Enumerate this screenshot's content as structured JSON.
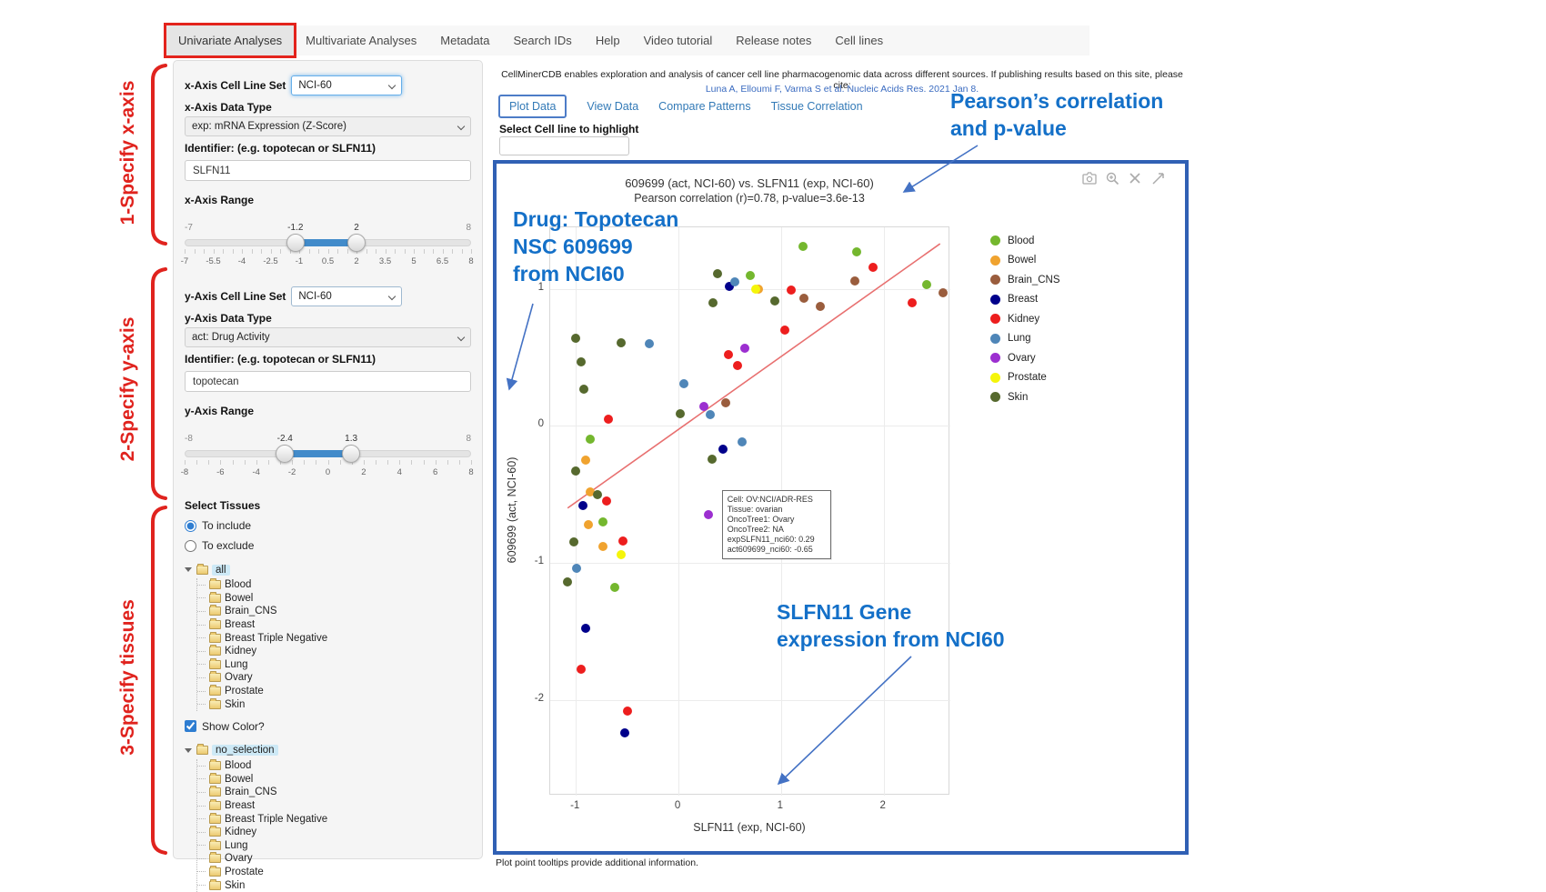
{
  "colors": {
    "annotation_blue": "#1470c8",
    "step_red": "#e0231e",
    "plot_container_border": "#3060b4",
    "slider_accent": "#428bca",
    "tab_blue": "#337ab7",
    "link_blue": "#3a6bc0",
    "trend_line": "#e87070"
  },
  "nav": {
    "items": [
      "Univariate Analyses",
      "Multivariate Analyses",
      "Metadata",
      "Search IDs",
      "Help",
      "Video tutorial",
      "Release notes",
      "Cell lines"
    ],
    "active": "Univariate Analyses"
  },
  "annotations": {
    "step1": "1-Specify x-axis",
    "step2": "2-Specify y-axis",
    "step3": "3-Specify tissues",
    "pearson_line1": "Pearson’s correlation",
    "pearson_line2": "and p-value",
    "drug_line1": "Drug: Topotecan",
    "drug_line2": "NSC 609699",
    "drug_line3": "from NCI60",
    "slfn_line1": "SLFN11 Gene",
    "slfn_line2": "expression from NCI60"
  },
  "sidebar": {
    "x": {
      "cell_line_set_label": "x-Axis Cell Line Set",
      "cell_line_set_value": "NCI-60",
      "data_type_label": "x-Axis Data Type",
      "data_type_value": "exp: mRNA Expression (Z-Score)",
      "identifier_label": "Identifier: (e.g. topotecan or SLFN11)",
      "identifier_value": "SLFN11",
      "range_label": "x-Axis Range",
      "range": {
        "min": -7,
        "max": 8,
        "from": -1.2,
        "to": 2,
        "tick_labels": [
          "-7",
          "-5.5",
          "-4",
          "-2.5",
          "-1",
          "0.5",
          "2",
          "3.5",
          "5",
          "6.5",
          "8"
        ]
      }
    },
    "y": {
      "cell_line_set_label": "y-Axis Cell Line Set",
      "cell_line_set_value": "NCI-60",
      "data_type_label": "y-Axis Data Type",
      "data_type_value": "act: Drug Activity",
      "identifier_label": "Identifier: (e.g. topotecan or SLFN11)",
      "identifier_value": "topotecan",
      "range_label": "y-Axis Range",
      "range": {
        "min": -8,
        "max": 8,
        "from": -2.4,
        "to": 1.3,
        "tick_labels": [
          "-8",
          "-6",
          "-4",
          "-2",
          "0",
          "2",
          "4",
          "6",
          "8"
        ]
      }
    },
    "tissues": {
      "label": "Select Tissues",
      "include_label": "To include",
      "exclude_label": "To exclude",
      "include_selected": true,
      "tree1_root": "all",
      "tree2_root": "no_selection",
      "children": [
        "Blood",
        "Bowel",
        "Brain_CNS",
        "Breast",
        "Breast Triple Negative",
        "Kidney",
        "Lung",
        "Ovary",
        "Prostate",
        "Skin"
      ],
      "show_color_label": "Show Color?",
      "show_color_checked": true
    }
  },
  "main": {
    "citation_line1": "CellMinerCDB enables exploration and analysis of cancer cell line pharmacogenomic data across different sources. If publishing results based on this site, please cite:",
    "citation_link": "Luna A, Elloumi F, Varma S et al. Nucleic Acids Res. 2021 Jan 8.",
    "tabs": [
      "Plot Data",
      "View Data",
      "Compare Patterns",
      "Tissue Correlation"
    ],
    "active_tab": "Plot Data",
    "highlight_label": "Select Cell line to highlight",
    "highlight_value": "",
    "toolbar_icons": [
      "camera",
      "zoom-in",
      "close",
      "pan"
    ],
    "footer_note": "Plot point tooltips provide additional information."
  },
  "chart_data": {
    "type": "scatter",
    "title": "609699 (act, NCI-60) vs. SLFN11 (exp, NCI-60)",
    "subtitle": "Pearson correlation (r)=0.78, p-value=3.6e-13",
    "xlabel": "SLFN11 (exp, NCI-60)",
    "ylabel": "609699 (act, NCI-60)",
    "xlim": [
      -1.25,
      2.65
    ],
    "ylim": [
      -2.7,
      1.45
    ],
    "xticks": [
      -1,
      0,
      1,
      2
    ],
    "yticks": [
      -2,
      -1,
      0,
      1
    ],
    "grid": true,
    "legend_position": "right",
    "pearson_r": 0.78,
    "p_value": "3.6e-13",
    "trend_line": {
      "x1": -1.08,
      "y1": -0.6,
      "x2": 2.55,
      "y2": 1.33
    },
    "series": [
      {
        "name": "Blood",
        "color": "#74b72e",
        "points": [
          [
            1.21,
            1.31
          ],
          [
            1.74,
            1.27
          ],
          [
            2.42,
            1.03
          ],
          [
            0.7,
            1.1
          ],
          [
            -0.86,
            -0.1
          ],
          [
            -0.74,
            -0.7
          ],
          [
            -0.62,
            -1.18
          ]
        ]
      },
      {
        "name": "Bowel",
        "color": "#f0a32f",
        "points": [
          [
            0.78,
            1.0
          ],
          [
            -0.9,
            -0.25
          ],
          [
            -0.86,
            -0.48
          ],
          [
            -0.88,
            -0.72
          ],
          [
            -0.74,
            -0.88
          ]
        ]
      },
      {
        "name": "Brain_CNS",
        "color": "#9a5d3d",
        "points": [
          [
            1.22,
            0.93
          ],
          [
            1.38,
            0.87
          ],
          [
            1.72,
            1.06
          ],
          [
            2.58,
            0.97
          ],
          [
            0.46,
            0.17
          ]
        ]
      },
      {
        "name": "Breast",
        "color": "#00008b",
        "points": [
          [
            0.5,
            1.02
          ],
          [
            0.43,
            -0.17
          ],
          [
            -0.93,
            -0.58
          ],
          [
            -0.9,
            -1.48
          ],
          [
            -0.52,
            -2.24
          ]
        ]
      },
      {
        "name": "Kidney",
        "color": "#ed1e1e",
        "points": [
          [
            1.9,
            1.16
          ],
          [
            2.28,
            0.9
          ],
          [
            1.1,
            0.99
          ],
          [
            1.04,
            0.7
          ],
          [
            0.49,
            0.52
          ],
          [
            0.58,
            0.44
          ],
          [
            -0.68,
            0.05
          ],
          [
            -0.7,
            -0.55
          ],
          [
            -0.54,
            -0.84
          ],
          [
            -0.95,
            -1.78
          ],
          [
            -0.5,
            -2.08
          ]
        ]
      },
      {
        "name": "Lung",
        "color": "#4f86b8",
        "points": [
          [
            -0.28,
            0.6
          ],
          [
            0.05,
            0.31
          ],
          [
            0.31,
            0.08
          ],
          [
            0.62,
            -0.12
          ],
          [
            -0.99,
            -1.04
          ],
          [
            0.55,
            1.05
          ]
        ]
      },
      {
        "name": "Ovary",
        "color": "#9c2fd0",
        "points": [
          [
            0.65,
            0.57
          ],
          [
            0.25,
            0.14
          ],
          [
            0.29,
            -0.65
          ]
        ]
      },
      {
        "name": "Prostate",
        "color": "#f5f50a",
        "points": [
          [
            0.75,
            1.0
          ],
          [
            -0.56,
            -0.94
          ]
        ]
      },
      {
        "name": "Skin",
        "color": "#56692e",
        "points": [
          [
            0.38,
            1.11
          ],
          [
            0.34,
            0.9
          ],
          [
            0.94,
            0.91
          ],
          [
            -0.56,
            0.61
          ],
          [
            -1.0,
            0.64
          ],
          [
            -0.95,
            0.47
          ],
          [
            0.02,
            0.09
          ],
          [
            0.33,
            -0.24
          ],
          [
            -1.0,
            -0.33
          ],
          [
            -0.79,
            -0.5
          ],
          [
            -1.02,
            -0.85
          ],
          [
            -1.08,
            -1.14
          ],
          [
            -0.92,
            0.27
          ]
        ]
      }
    ],
    "tooltip": {
      "anchor": [
        0.29,
        -0.65
      ],
      "lines": [
        "Cell: OV:NCI/ADR-RES",
        "Tissue: ovarian",
        "OncoTree1: Ovary",
        "OncoTree2: NA",
        "expSLFN11_nci60: 0.29",
        "act609699_nci60: -0.65"
      ]
    }
  }
}
